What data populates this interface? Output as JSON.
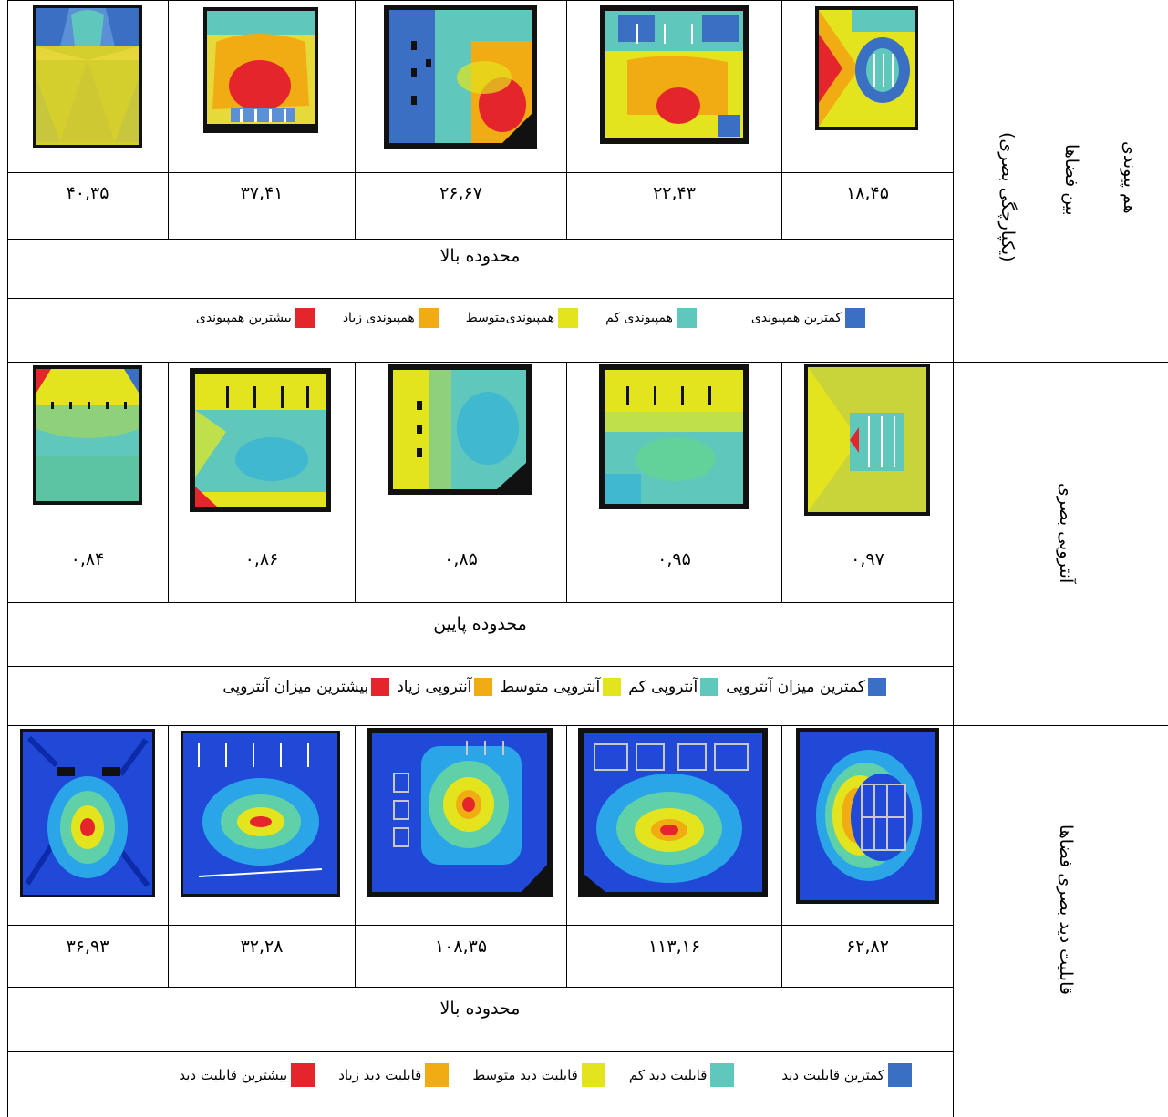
{
  "colors": {
    "blue": "#3a6fc4",
    "teal": "#5fc7bc",
    "yellow": "#e4e41e",
    "orange": "#f2ac13",
    "red": "#e4262c"
  },
  "sections": [
    {
      "title_line1": "هم پیوندی",
      "title_line2": "بین فضاها",
      "title_line3": "(یکپارچگی بصری)",
      "values": [
        "۴۰,۳۵",
        "۳۷,۴۱",
        "۲۶,۶۷",
        "۲۲,۴۳",
        "۱۸,۴۵"
      ],
      "range": "محدوده بالا",
      "legend": [
        {
          "label": "کمترین همپیوندی",
          "color": "#3a6fc4"
        },
        {
          "label": "همپیوندی کم",
          "color": "#5fc7bc"
        },
        {
          "label": "همپیوندی‌متوسط",
          "color": "#e4e41e"
        },
        {
          "label": "همپیوندی زیاد",
          "color": "#f2ac13"
        },
        {
          "label": "بیشترین همپیوندی",
          "color": "#e4262c"
        }
      ]
    },
    {
      "title_line1": "آنتروپی بصری",
      "values": [
        "۰,۸۴",
        "۰,۸۶",
        "۰,۸۵",
        "۰,۹۵",
        "۰,۹۷"
      ],
      "range": "محدوده پایین",
      "legend": [
        {
          "label": "کمترین میزان آنتروپی",
          "color": "#3a6fc4"
        },
        {
          "label": "آنتروپی کم",
          "color": "#5fc7bc"
        },
        {
          "label": "آنتروپی متوسط",
          "color": "#e4e41e"
        },
        {
          "label": "آنتروپی زیاد",
          "color": "#f2ac13"
        },
        {
          "label": "بیشترین میزان آنتروپی",
          "color": "#e4262c"
        }
      ]
    },
    {
      "title_line1": "قابلیت دید بصری فضاها",
      "values": [
        "۳۶,۹۳",
        "۳۲,۲۸",
        "۱۰۸,۳۵",
        "۱۱۳,۱۶",
        "۶۲,۸۲"
      ],
      "range": "محدوده بالا",
      "legend": [
        {
          "label": "کمترین قابلیت دید",
          "color": "#3a6fc4"
        },
        {
          "label": "قابلیت دید کم",
          "color": "#5fc7bc"
        },
        {
          "label": "قابلیت دید متوسط",
          "color": "#e4e41e"
        },
        {
          "label": "قابلیت دید زیاد",
          "color": "#f2ac13"
        },
        {
          "label": "بیشترین قابلیت دید",
          "color": "#e4262c"
        }
      ]
    }
  ]
}
